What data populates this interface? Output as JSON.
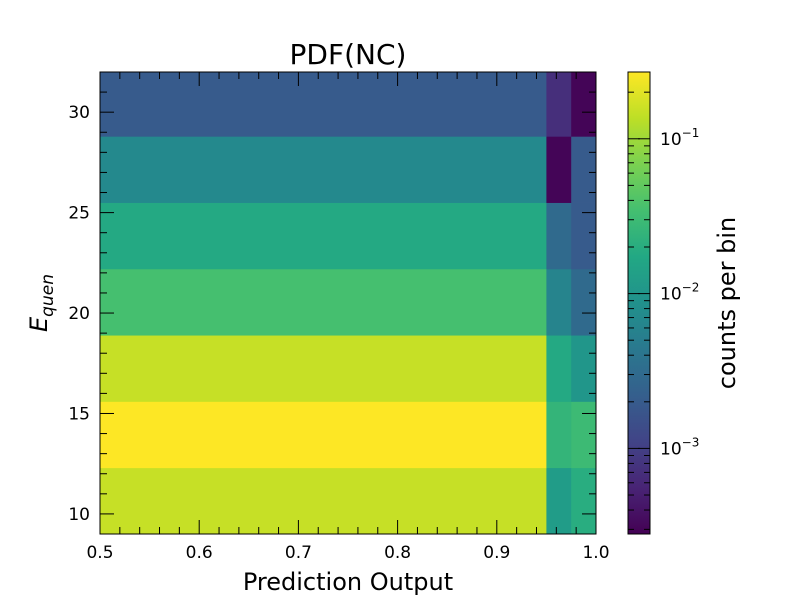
{
  "chart_data": {
    "type": "heatmap",
    "title": "PDF(NC)",
    "xlabel": "Prediction Output",
    "ylabel_base": "E",
    "ylabel_sub": "quen",
    "colorbar_label": "counts per bin",
    "colormap": "viridis",
    "color_scale": "log",
    "xlim": [
      0.5,
      1.0
    ],
    "ylim": [
      9.0,
      32.0
    ],
    "x_ticks": [
      0.5,
      0.6,
      0.7,
      0.8,
      0.9,
      1.0
    ],
    "x_tick_labels": [
      "0.5",
      "0.6",
      "0.7",
      "0.8",
      "0.9",
      "1.0"
    ],
    "y_ticks": [
      10,
      15,
      20,
      25,
      30
    ],
    "y_tick_labels": [
      "10",
      "15",
      "20",
      "25",
      "30"
    ],
    "colorbar_range": [
      0.00028,
      0.27
    ],
    "colorbar_ticks": [
      0.1,
      0.01,
      0.001
    ],
    "colorbar_tick_labels": [
      {
        "base": "10",
        "exp": "−1"
      },
      {
        "base": "10",
        "exp": "−2"
      },
      {
        "base": "10",
        "exp": "−3"
      }
    ],
    "x_edges": [
      0.5,
      0.95,
      0.975,
      1.0
    ],
    "y_edges": [
      9.0,
      12.3,
      15.6,
      18.9,
      22.2,
      25.5,
      28.8,
      32.0
    ],
    "values": [
      [
        0.15,
        0.012,
        0.02
      ],
      [
        0.27,
        0.025,
        0.03
      ],
      [
        0.15,
        0.018,
        0.01
      ],
      [
        0.035,
        0.006,
        0.003
      ],
      [
        0.018,
        0.003,
        0.002
      ],
      [
        0.007,
        0.0003,
        0.002
      ],
      [
        0.002,
        0.0007,
        0.0003
      ]
    ]
  }
}
